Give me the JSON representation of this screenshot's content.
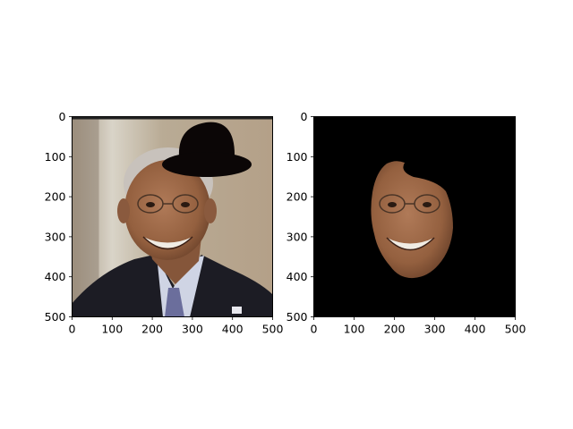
{
  "chart_data": [
    {
      "type": "image",
      "content": "photo of a smiling man in a dark suit and tie with a black bowler hat drawn over the top of his head",
      "xlim": [
        0,
        500
      ],
      "ylim": [
        500,
        0
      ],
      "xticks": [
        "0",
        "100",
        "200",
        "300",
        "400",
        "500"
      ],
      "yticks": [
        "0",
        "100",
        "200",
        "300",
        "400",
        "500"
      ],
      "colors": {
        "background": "#b7a58e",
        "hat": "#0b0606",
        "suit": "#1c1c24",
        "skin": "#9a6748"
      }
    },
    {
      "type": "image",
      "content": "face segmentation: the man's face cut out on a black background",
      "xlim": [
        0,
        500
      ],
      "ylim": [
        500,
        0
      ],
      "xticks": [
        "0",
        "100",
        "200",
        "300",
        "400",
        "500"
      ],
      "yticks": [
        "0",
        "100",
        "200",
        "300",
        "400",
        "500"
      ],
      "colors": {
        "background": "#000000",
        "skin": "#9a6748"
      }
    }
  ]
}
